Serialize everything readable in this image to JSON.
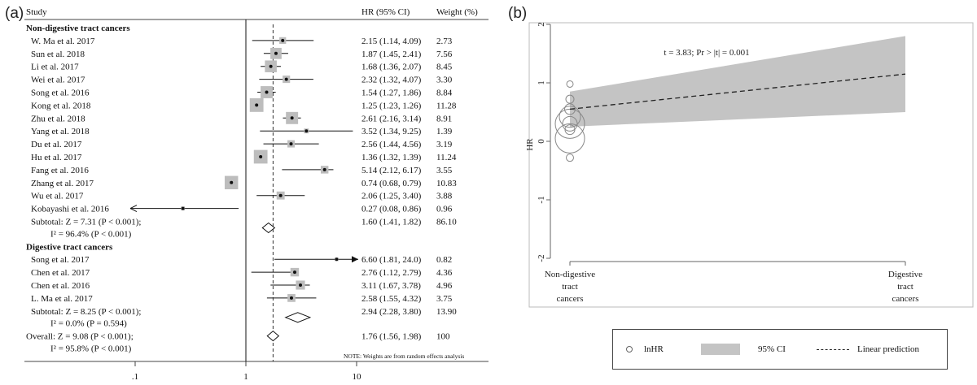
{
  "panel_a": {
    "label": "(a)",
    "headers": {
      "study": "Study",
      "hr": "HR (95% CI)",
      "weight": "Weight (%)"
    },
    "groups": [
      {
        "title": "Non-digestive tract cancers",
        "rows": [
          {
            "study": "W. Ma et al. 2017",
            "hr": "2.15 (1.14, 4.09)",
            "weight": "2.73",
            "est": 2.15,
            "lo": 1.14,
            "hi": 4.09,
            "w": 2.73
          },
          {
            "study": "Sun et al. 2018",
            "hr": "1.87 (1.45, 2.41)",
            "weight": "7.56",
            "est": 1.87,
            "lo": 1.45,
            "hi": 2.41,
            "w": 7.56
          },
          {
            "study": "Li et al. 2017",
            "hr": "1.68 (1.36, 2.07)",
            "weight": "8.45",
            "est": 1.68,
            "lo": 1.36,
            "hi": 2.07,
            "w": 8.45
          },
          {
            "study": "Wei et al. 2017",
            "hr": "2.32 (1.32, 4.07)",
            "weight": "3.30",
            "est": 2.32,
            "lo": 1.32,
            "hi": 4.07,
            "w": 3.3
          },
          {
            "study": "Song et al. 2016",
            "hr": "1.54 (1.27, 1.86)",
            "weight": "8.84",
            "est": 1.54,
            "lo": 1.27,
            "hi": 1.86,
            "w": 8.84
          },
          {
            "study": "Kong et al. 2018",
            "hr": "1.25 (1.23, 1.26)",
            "weight": "11.28",
            "est": 1.25,
            "lo": 1.23,
            "hi": 1.26,
            "w": 11.28
          },
          {
            "study": "Zhu et al. 2018",
            "hr": "2.61 (2.16, 3.14)",
            "weight": "8.91",
            "est": 2.61,
            "lo": 2.16,
            "hi": 3.14,
            "w": 8.91
          },
          {
            "study": "Yang et al. 2018",
            "hr": "3.52 (1.34, 9.25)",
            "weight": "1.39",
            "est": 3.52,
            "lo": 1.34,
            "hi": 9.25,
            "w": 1.39
          },
          {
            "study": "Du et al. 2017",
            "hr": "2.56 (1.44, 4.56)",
            "weight": "3.19",
            "est": 2.56,
            "lo": 1.44,
            "hi": 4.56,
            "w": 3.19
          },
          {
            "study": "Hu et al. 2017",
            "hr": "1.36 (1.32, 1.39)",
            "weight": "11.24",
            "est": 1.36,
            "lo": 1.32,
            "hi": 1.39,
            "w": 11.24
          },
          {
            "study": "Fang et al. 2016",
            "hr": "5.14 (2.12, 6.17)",
            "weight": "3.55",
            "est": 5.14,
            "lo": 2.12,
            "hi": 6.17,
            "w": 3.55
          },
          {
            "study": "Zhang et al. 2017",
            "hr": "0.74 (0.68, 0.79)",
            "weight": "10.83",
            "est": 0.74,
            "lo": 0.68,
            "hi": 0.79,
            "w": 10.83
          },
          {
            "study": "Wu et al. 2017",
            "hr": "2.06 (1.25, 3.40)",
            "weight": "3.88",
            "est": 2.06,
            "lo": 1.25,
            "hi": 3.4,
            "w": 3.88
          },
          {
            "study": "Kobayashi et al. 2016",
            "hr": "0.27 (0.08, 0.86)",
            "weight": "0.96",
            "est": 0.27,
            "lo": 0.08,
            "hi": 0.86,
            "w": 0.96,
            "arrow_left": true
          }
        ],
        "subtotal": {
          "line1": "Subtotal: Z = 7.31 (P < 0.001);",
          "line2": "I² = 96.4% (P < 0.001)",
          "hr": "1.60 (1.41, 1.82)",
          "weight": "86.10",
          "est": 1.6,
          "lo": 1.41,
          "hi": 1.82
        }
      },
      {
        "title": "Digestive tract cancers",
        "rows": [
          {
            "study": "Song et al. 2017",
            "hr": "6.60 (1.81, 24.0)",
            "weight": "0.82",
            "est": 6.6,
            "lo": 1.81,
            "hi": 24.0,
            "w": 0.82,
            "arrow_right": true
          },
          {
            "study": "Chen et al. 2017",
            "hr": "2.76 (1.12, 2.79)",
            "weight": "4.36",
            "est": 2.76,
            "lo": 1.12,
            "hi": 2.79,
            "w": 4.36
          },
          {
            "study": "Chen et al. 2016",
            "hr": "3.11 (1.67, 3.78)",
            "weight": "4.96",
            "est": 3.11,
            "lo": 1.67,
            "hi": 3.78,
            "w": 4.96
          },
          {
            "study": "L. Ma et al. 2017",
            "hr": "2.58 (1.55, 4.32)",
            "weight": "3.75",
            "est": 2.58,
            "lo": 1.55,
            "hi": 4.32,
            "w": 3.75
          }
        ],
        "subtotal": {
          "line1": "Subtotal: Z = 8.25 (P < 0.001);",
          "line2": "I² = 0.0% (P = 0.594)",
          "hr": "2.94 (2.28, 3.80)",
          "weight": "13.90",
          "est": 2.94,
          "lo": 2.28,
          "hi": 3.8
        }
      }
    ],
    "overall": {
      "line1": "Overall: Z = 9.08 (P < 0.001);",
      "line2": "I² = 95.8% (P < 0.001)",
      "hr": "1.76 (1.56, 1.98)",
      "weight": "100",
      "est": 1.76,
      "lo": 1.56,
      "hi": 1.98
    },
    "note": "NOTE: Weights are from random effects analysis",
    "x_ticks": [
      {
        "value": 0.1,
        "label": ".1"
      },
      {
        "value": 1,
        "label": "1"
      },
      {
        "value": 10,
        "label": "10"
      }
    ],
    "x_scale": "log"
  },
  "panel_b": {
    "label": "(b)",
    "annotation": "t = 3.83; Pr > |t| = 0.001",
    "ylabel": "HR",
    "yticks": [
      "2",
      "1",
      "0",
      "-1",
      "-2"
    ],
    "xcats": [
      {
        "lines": [
          "Non-digestive",
          "tract",
          "cancers"
        ]
      },
      {
        "lines": [
          "Digestive",
          "tract",
          "cancers"
        ]
      }
    ],
    "legend": {
      "points": "lnHR",
      "ci": "95% CI",
      "line": "Linear prediction"
    },
    "colors": {
      "ci_band": "#c4c4c4",
      "line": "#222222"
    }
  },
  "chart_data": [
    {
      "type": "forest",
      "x_scale": "log",
      "xticks": [
        0.1,
        1,
        10
      ],
      "null_line": 1,
      "pooled_line": 1.76,
      "series": [
        {
          "name": "Non-digestive tract cancers",
          "studies": [
            "W. Ma et al. 2017",
            "Sun et al. 2018",
            "Li et al. 2017",
            "Wei et al. 2017",
            "Song et al. 2016",
            "Kong et al. 2018",
            "Zhu et al. 2018",
            "Yang et al. 2018",
            "Du et al. 2017",
            "Hu et al. 2017",
            "Fang et al. 2016",
            "Zhang et al. 2017",
            "Wu et al. 2017",
            "Kobayashi et al. 2016"
          ],
          "hr": [
            2.15,
            1.87,
            1.68,
            2.32,
            1.54,
            1.25,
            2.61,
            3.52,
            2.56,
            1.36,
            5.14,
            0.74,
            2.06,
            0.27
          ],
          "subtotal": 1.6
        },
        {
          "name": "Digestive tract cancers",
          "studies": [
            "Song et al. 2017",
            "Chen et al. 2017",
            "Chen et al. 2016",
            "L. Ma et al. 2017"
          ],
          "hr": [
            6.6,
            2.76,
            3.11,
            2.58
          ],
          "subtotal": 2.94
        }
      ],
      "overall": 1.76
    },
    {
      "type": "scatter",
      "ylabel": "HR",
      "ylim": [
        -2,
        2
      ],
      "categories": [
        "Non-digestive tract cancers",
        "Digestive tract cancers"
      ],
      "annotation": "t = 3.83; Pr > |t| = 0.001",
      "linear_prediction": [
        0.55,
        1.15
      ],
      "ci_lower": [
        0.25,
        0.5
      ],
      "ci_upper": [
        0.85,
        1.8
      ]
    }
  ]
}
